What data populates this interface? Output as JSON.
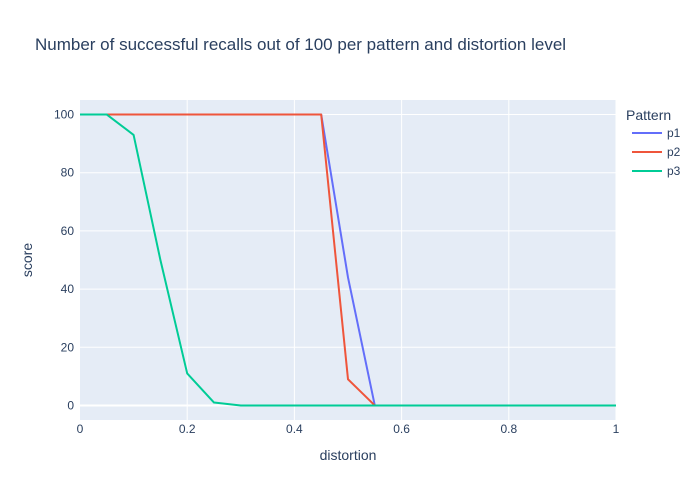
{
  "chart_data": {
    "type": "line",
    "title": "Number of successful recalls out of 100 per pattern and distortion level",
    "xlabel": "distortion",
    "ylabel": "score",
    "xlim": [
      0,
      1
    ],
    "ylim": [
      -5,
      105
    ],
    "x_ticks": [
      0,
      0.2,
      0.4,
      0.6,
      0.8,
      1
    ],
    "x_tick_labels": [
      "0",
      "0.2",
      "0.4",
      "0.6",
      "0.8",
      "1"
    ],
    "y_ticks": [
      0,
      20,
      40,
      60,
      80,
      100
    ],
    "y_tick_labels": [
      "0",
      "20",
      "40",
      "60",
      "80",
      "100"
    ],
    "legend_title": "Pattern",
    "legend_position": "top-right",
    "x": [
      0,
      0.05,
      0.1,
      0.15,
      0.2,
      0.25,
      0.3,
      0.35,
      0.4,
      0.45,
      0.5,
      0.55,
      0.6,
      0.65,
      0.7,
      0.75,
      0.8,
      0.85,
      0.9,
      0.95,
      1.0
    ],
    "series": [
      {
        "name": "p1",
        "color": "#636efa",
        "values": [
          100,
          100,
          100,
          100,
          100,
          100,
          100,
          100,
          100,
          100,
          44,
          0,
          0,
          0,
          0,
          0,
          0,
          0,
          0,
          0,
          0
        ]
      },
      {
        "name": "p2",
        "color": "#ef553b",
        "values": [
          100,
          100,
          100,
          100,
          100,
          100,
          100,
          100,
          100,
          100,
          9,
          0,
          0,
          0,
          0,
          0,
          0,
          0,
          0,
          0,
          0
        ]
      },
      {
        "name": "p3",
        "color": "#00cc96",
        "values": [
          100,
          100,
          93,
          50,
          11,
          1,
          0,
          0,
          0,
          0,
          0,
          0,
          0,
          0,
          0,
          0,
          0,
          0,
          0,
          0,
          0
        ]
      }
    ]
  }
}
